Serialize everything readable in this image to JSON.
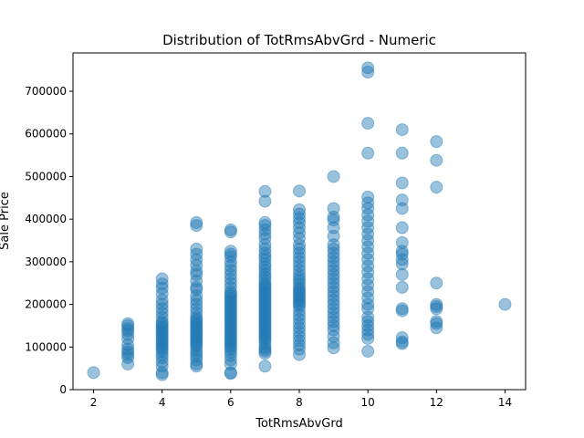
{
  "chart_data": {
    "type": "scatter",
    "title": "Distribution of TotRmsAbvGrd - Numeric",
    "xlabel": "TotRmsAbvGrd",
    "ylabel": "Sale Price",
    "xlim": [
      1.4,
      14.6
    ],
    "ylim": [
      0,
      790000
    ],
    "xticks": [
      2,
      4,
      6,
      8,
      10,
      12,
      14
    ],
    "yticks": [
      0,
      100000,
      200000,
      300000,
      400000,
      500000,
      600000,
      700000
    ],
    "grid": false,
    "point_color": "#1f77b4",
    "point_opacity": 0.45,
    "series": [
      {
        "points": [
          [
            2,
            40000
          ],
          [
            3,
            60000
          ],
          [
            3,
            75000
          ],
          [
            3,
            82000
          ],
          [
            3,
            88000
          ],
          [
            3,
            95000
          ],
          [
            3,
            105000
          ],
          [
            3,
            120000
          ],
          [
            3,
            130000
          ],
          [
            3,
            138000
          ],
          [
            3,
            143000
          ],
          [
            3,
            150000
          ],
          [
            3,
            155000
          ],
          [
            4,
            35000
          ],
          [
            4,
            40000
          ],
          [
            4,
            55000
          ],
          [
            4,
            65000
          ],
          [
            4,
            75000
          ],
          [
            4,
            82000
          ],
          [
            4,
            90000
          ],
          [
            4,
            95000
          ],
          [
            4,
            100000
          ],
          [
            4,
            105000
          ],
          [
            4,
            110000
          ],
          [
            4,
            115000
          ],
          [
            4,
            120000
          ],
          [
            4,
            125000
          ],
          [
            4,
            130000
          ],
          [
            4,
            135000
          ],
          [
            4,
            140000
          ],
          [
            4,
            145000
          ],
          [
            4,
            150000
          ],
          [
            4,
            155000
          ],
          [
            4,
            160000
          ],
          [
            4,
            170000
          ],
          [
            4,
            180000
          ],
          [
            4,
            190000
          ],
          [
            4,
            200000
          ],
          [
            4,
            210000
          ],
          [
            4,
            225000
          ],
          [
            4,
            238000
          ],
          [
            4,
            248000
          ],
          [
            4,
            260000
          ],
          [
            5,
            55000
          ],
          [
            5,
            60000
          ],
          [
            5,
            70000
          ],
          [
            5,
            78000
          ],
          [
            5,
            85000
          ],
          [
            5,
            92000
          ],
          [
            5,
            100000
          ],
          [
            5,
            105000
          ],
          [
            5,
            110000
          ],
          [
            5,
            115000
          ],
          [
            5,
            120000
          ],
          [
            5,
            125000
          ],
          [
            5,
            130000
          ],
          [
            5,
            135000
          ],
          [
            5,
            140000
          ],
          [
            5,
            145000
          ],
          [
            5,
            150000
          ],
          [
            5,
            155000
          ],
          [
            5,
            160000
          ],
          [
            5,
            165000
          ],
          [
            5,
            170000
          ],
          [
            5,
            180000
          ],
          [
            5,
            190000
          ],
          [
            5,
            200000
          ],
          [
            5,
            210000
          ],
          [
            5,
            220000
          ],
          [
            5,
            235000
          ],
          [
            5,
            240000
          ],
          [
            5,
            255000
          ],
          [
            5,
            270000
          ],
          [
            5,
            278000
          ],
          [
            5,
            292000
          ],
          [
            5,
            305000
          ],
          [
            5,
            318000
          ],
          [
            5,
            330000
          ],
          [
            5,
            385000
          ],
          [
            5,
            392000
          ],
          [
            6,
            38000
          ],
          [
            6,
            40000
          ],
          [
            6,
            60000
          ],
          [
            6,
            70000
          ],
          [
            6,
            80000
          ],
          [
            6,
            88000
          ],
          [
            6,
            95000
          ],
          [
            6,
            100000
          ],
          [
            6,
            105000
          ],
          [
            6,
            110000
          ],
          [
            6,
            115000
          ],
          [
            6,
            120000
          ],
          [
            6,
            125000
          ],
          [
            6,
            130000
          ],
          [
            6,
            135000
          ],
          [
            6,
            140000
          ],
          [
            6,
            145000
          ],
          [
            6,
            150000
          ],
          [
            6,
            155000
          ],
          [
            6,
            160000
          ],
          [
            6,
            165000
          ],
          [
            6,
            170000
          ],
          [
            6,
            175000
          ],
          [
            6,
            180000
          ],
          [
            6,
            185000
          ],
          [
            6,
            190000
          ],
          [
            6,
            195000
          ],
          [
            6,
            200000
          ],
          [
            6,
            205000
          ],
          [
            6,
            210000
          ],
          [
            6,
            215000
          ],
          [
            6,
            220000
          ],
          [
            6,
            225000
          ],
          [
            6,
            230000
          ],
          [
            6,
            240000
          ],
          [
            6,
            250000
          ],
          [
            6,
            260000
          ],
          [
            6,
            270000
          ],
          [
            6,
            280000
          ],
          [
            6,
            290000
          ],
          [
            6,
            300000
          ],
          [
            6,
            312000
          ],
          [
            6,
            318000
          ],
          [
            6,
            325000
          ],
          [
            6,
            370000
          ],
          [
            6,
            375000
          ],
          [
            7,
            55000
          ],
          [
            7,
            85000
          ],
          [
            7,
            90000
          ],
          [
            7,
            95000
          ],
          [
            7,
            100000
          ],
          [
            7,
            108000
          ],
          [
            7,
            115000
          ],
          [
            7,
            120000
          ],
          [
            7,
            125000
          ],
          [
            7,
            130000
          ],
          [
            7,
            135000
          ],
          [
            7,
            140000
          ],
          [
            7,
            145000
          ],
          [
            7,
            150000
          ],
          [
            7,
            155000
          ],
          [
            7,
            160000
          ],
          [
            7,
            165000
          ],
          [
            7,
            170000
          ],
          [
            7,
            175000
          ],
          [
            7,
            180000
          ],
          [
            7,
            185000
          ],
          [
            7,
            190000
          ],
          [
            7,
            195000
          ],
          [
            7,
            200000
          ],
          [
            7,
            205000
          ],
          [
            7,
            210000
          ],
          [
            7,
            215000
          ],
          [
            7,
            220000
          ],
          [
            7,
            225000
          ],
          [
            7,
            230000
          ],
          [
            7,
            235000
          ],
          [
            7,
            240000
          ],
          [
            7,
            245000
          ],
          [
            7,
            250000
          ],
          [
            7,
            258000
          ],
          [
            7,
            265000
          ],
          [
            7,
            272000
          ],
          [
            7,
            280000
          ],
          [
            7,
            288000
          ],
          [
            7,
            295000
          ],
          [
            7,
            305000
          ],
          [
            7,
            312000
          ],
          [
            7,
            320000
          ],
          [
            7,
            330000
          ],
          [
            7,
            340000
          ],
          [
            7,
            355000
          ],
          [
            7,
            365000
          ],
          [
            7,
            375000
          ],
          [
            7,
            385000
          ],
          [
            7,
            392000
          ],
          [
            7,
            442000
          ],
          [
            7,
            465000
          ],
          [
            8,
            82000
          ],
          [
            8,
            95000
          ],
          [
            8,
            105000
          ],
          [
            8,
            115000
          ],
          [
            8,
            125000
          ],
          [
            8,
            135000
          ],
          [
            8,
            145000
          ],
          [
            8,
            155000
          ],
          [
            8,
            165000
          ],
          [
            8,
            175000
          ],
          [
            8,
            185000
          ],
          [
            8,
            195000
          ],
          [
            8,
            200000
          ],
          [
            8,
            205000
          ],
          [
            8,
            210000
          ],
          [
            8,
            215000
          ],
          [
            8,
            220000
          ],
          [
            8,
            225000
          ],
          [
            8,
            230000
          ],
          [
            8,
            235000
          ],
          [
            8,
            240000
          ],
          [
            8,
            248000
          ],
          [
            8,
            255000
          ],
          [
            8,
            262000
          ],
          [
            8,
            270000
          ],
          [
            8,
            280000
          ],
          [
            8,
            290000
          ],
          [
            8,
            300000
          ],
          [
            8,
            310000
          ],
          [
            8,
            320000
          ],
          [
            8,
            330000
          ],
          [
            8,
            340000
          ],
          [
            8,
            355000
          ],
          [
            8,
            368000
          ],
          [
            8,
            380000
          ],
          [
            8,
            392000
          ],
          [
            8,
            402000
          ],
          [
            8,
            412000
          ],
          [
            8,
            422000
          ],
          [
            8,
            466000
          ],
          [
            9,
            98000
          ],
          [
            9,
            110000
          ],
          [
            9,
            125000
          ],
          [
            9,
            140000
          ],
          [
            9,
            150000
          ],
          [
            9,
            160000
          ],
          [
            9,
            170000
          ],
          [
            9,
            180000
          ],
          [
            9,
            190000
          ],
          [
            9,
            200000
          ],
          [
            9,
            210000
          ],
          [
            9,
            220000
          ],
          [
            9,
            230000
          ],
          [
            9,
            240000
          ],
          [
            9,
            250000
          ],
          [
            9,
            260000
          ],
          [
            9,
            270000
          ],
          [
            9,
            280000
          ],
          [
            9,
            290000
          ],
          [
            9,
            300000
          ],
          [
            9,
            310000
          ],
          [
            9,
            320000
          ],
          [
            9,
            330000
          ],
          [
            9,
            340000
          ],
          [
            9,
            360000
          ],
          [
            9,
            380000
          ],
          [
            9,
            398000
          ],
          [
            9,
            405000
          ],
          [
            9,
            425000
          ],
          [
            9,
            500000
          ],
          [
            10,
            90000
          ],
          [
            10,
            120000
          ],
          [
            10,
            130000
          ],
          [
            10,
            140000
          ],
          [
            10,
            150000
          ],
          [
            10,
            160000
          ],
          [
            10,
            170000
          ],
          [
            10,
            190000
          ],
          [
            10,
            200000
          ],
          [
            10,
            215000
          ],
          [
            10,
            230000
          ],
          [
            10,
            245000
          ],
          [
            10,
            260000
          ],
          [
            10,
            275000
          ],
          [
            10,
            290000
          ],
          [
            10,
            305000
          ],
          [
            10,
            320000
          ],
          [
            10,
            335000
          ],
          [
            10,
            350000
          ],
          [
            10,
            365000
          ],
          [
            10,
            380000
          ],
          [
            10,
            395000
          ],
          [
            10,
            410000
          ],
          [
            10,
            425000
          ],
          [
            10,
            438000
          ],
          [
            10,
            452000
          ],
          [
            10,
            555000
          ],
          [
            10,
            625000
          ],
          [
            10,
            745000
          ],
          [
            10,
            755000
          ],
          [
            11,
            108000
          ],
          [
            11,
            112000
          ],
          [
            11,
            122000
          ],
          [
            11,
            185000
          ],
          [
            11,
            190000
          ],
          [
            11,
            240000
          ],
          [
            11,
            270000
          ],
          [
            11,
            295000
          ],
          [
            11,
            305000
          ],
          [
            11,
            318000
          ],
          [
            11,
            325000
          ],
          [
            11,
            345000
          ],
          [
            11,
            380000
          ],
          [
            11,
            425000
          ],
          [
            11,
            445000
          ],
          [
            11,
            485000
          ],
          [
            11,
            555000
          ],
          [
            11,
            610000
          ],
          [
            12,
            145000
          ],
          [
            12,
            155000
          ],
          [
            12,
            160000
          ],
          [
            12,
            190000
          ],
          [
            12,
            195000
          ],
          [
            12,
            200000
          ],
          [
            12,
            250000
          ],
          [
            12,
            475000
          ],
          [
            12,
            538000
          ],
          [
            12,
            582000
          ],
          [
            14,
            200000
          ]
        ]
      }
    ]
  }
}
